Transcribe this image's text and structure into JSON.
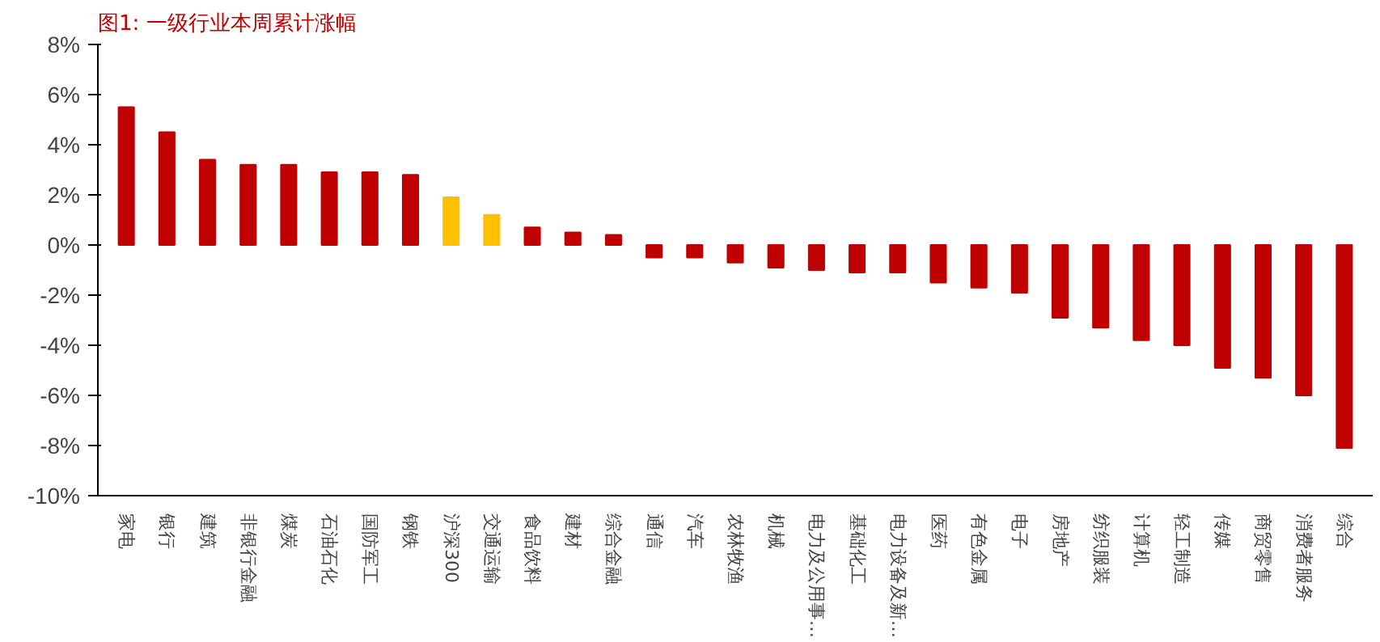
{
  "chart_data": {
    "type": "bar",
    "title": "图1:   一级行业本周累计涨幅",
    "categories": [
      "家电",
      "银行",
      "建筑",
      "非银行金融",
      "煤炭",
      "石油石化",
      "国防军工",
      "钢铁",
      "沪深300",
      "交通运输",
      "食品饮料",
      "建材",
      "综合金融",
      "通信",
      "汽车",
      "农林牧渔",
      "机械",
      "电力及公用事…",
      "基础化工",
      "电力设备及新…",
      "医药",
      "有色金属",
      "电子",
      "房地产",
      "纺织服装",
      "计算机",
      "轻工制造",
      "传媒",
      "商贸零售",
      "消费者服务",
      "综合"
    ],
    "values": [
      5.5,
      4.5,
      3.4,
      3.2,
      3.2,
      2.9,
      2.9,
      2.8,
      1.9,
      1.2,
      0.7,
      0.5,
      0.4,
      -0.5,
      -0.5,
      -0.7,
      -0.9,
      -1.0,
      -1.1,
      -1.1,
      -1.5,
      -1.7,
      -1.9,
      -2.9,
      -3.3,
      -3.8,
      -4.0,
      -4.9,
      -5.3,
      -6.0,
      -8.1
    ],
    "colors": [
      "#c00000",
      "#c00000",
      "#c00000",
      "#c00000",
      "#c00000",
      "#c00000",
      "#c00000",
      "#c00000",
      "#ffc000",
      "#ffc000",
      "#c00000",
      "#c00000",
      "#c00000",
      "#c00000",
      "#c00000",
      "#c00000",
      "#c00000",
      "#c00000",
      "#c00000",
      "#c00000",
      "#c00000",
      "#c00000",
      "#c00000",
      "#c00000",
      "#c00000",
      "#c00000",
      "#c00000",
      "#c00000",
      "#c00000",
      "#c00000",
      "#c00000"
    ],
    "ylim": [
      -10,
      8
    ],
    "yticks": [
      {
        "value": -10,
        "label": "-10%"
      },
      {
        "value": -8,
        "label": "-8%"
      },
      {
        "value": -6,
        "label": "-6%"
      },
      {
        "value": -4,
        "label": "-4%"
      },
      {
        "value": -2,
        "label": "-2%"
      },
      {
        "value": 0,
        "label": "0%"
      },
      {
        "value": 2,
        "label": "2%"
      },
      {
        "value": 4,
        "label": "4%"
      },
      {
        "value": 6,
        "label": "6%"
      },
      {
        "value": 8,
        "label": "8%"
      }
    ],
    "grid": false
  }
}
